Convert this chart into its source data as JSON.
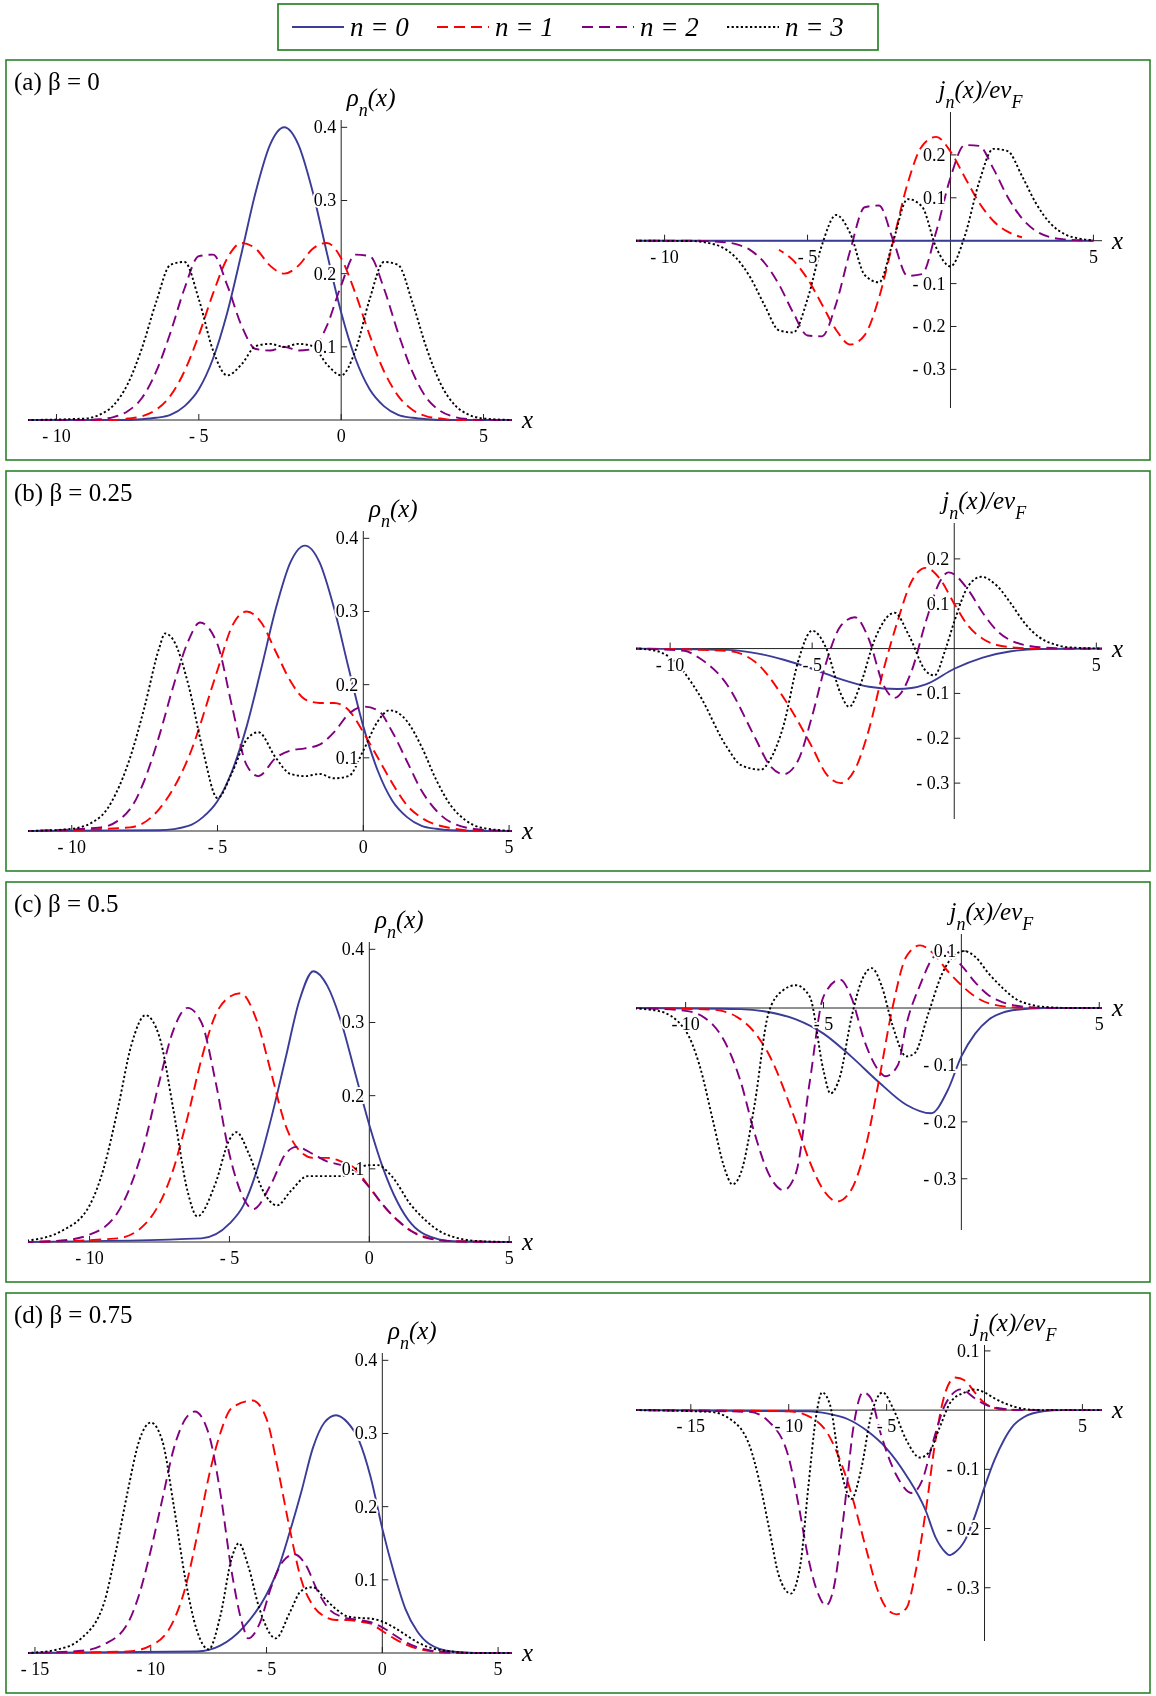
{
  "chart_data": [
    {
      "type": "line",
      "title": "(a) β = 0",
      "xlabel": "x",
      "ylabel": "ρ$_{n}$(x)",
      "legend": "top",
      "xlim": [
        -11,
        6
      ],
      "ylim": [
        0,
        0.41
      ],
      "xticks": [
        {
          "value": -10,
          "label": "- 10"
        },
        {
          "value": -5,
          "label": "- 5"
        },
        {
          "value": 0,
          "label": "0"
        },
        {
          "value": 5,
          "label": "5"
        }
      ],
      "yticks": [
        0.1,
        0.2,
        0.3,
        0.4
      ],
      "series": [
        {
          "name": "n = 0",
          "color": "#3b3b98",
          "line_style": "solid",
          "x": [
            -11,
            -9,
            -8.5,
            -8,
            -7.5,
            -7,
            -6.5,
            -6,
            -5.5,
            -5,
            -4.5,
            -4,
            -3.5,
            -3,
            -2.5,
            -2,
            -1.5,
            -1,
            -0.5,
            0,
            0.5,
            1,
            1.5,
            2,
            2.5,
            3,
            3.5,
            4,
            4.5,
            5,
            6
          ],
          "values": [
            0,
            0,
            0,
            0,
            0,
            0.001,
            0.003,
            0.007,
            0.019,
            0.042,
            0.084,
            0.147,
            0.228,
            0.312,
            0.376,
            0.4,
            0.376,
            0.312,
            0.228,
            0.147,
            0.084,
            0.042,
            0.019,
            0.007,
            0.003,
            0.001,
            0,
            0,
            0,
            0,
            0
          ]
        },
        {
          "name": "n = 1",
          "color": "#ff0000",
          "line_style": "dashed",
          "x": [
            -11,
            -9,
            -8.5,
            -8,
            -7.5,
            -7,
            -6.5,
            -6,
            -5.5,
            -5,
            -4.5,
            -4,
            -3.5,
            -3,
            -2.5,
            -2,
            -1.5,
            -1,
            -0.5,
            0,
            0.5,
            1,
            1.5,
            2,
            2.5,
            3,
            3.5,
            4,
            4.5,
            5,
            6
          ],
          "values": [
            0,
            0,
            0,
            0,
            0.002,
            0.005,
            0.014,
            0.033,
            0.067,
            0.116,
            0.173,
            0.221,
            0.242,
            0.234,
            0.211,
            0.2,
            0.211,
            0.234,
            0.242,
            0.221,
            0.173,
            0.116,
            0.067,
            0.033,
            0.014,
            0.005,
            0.002,
            0,
            0,
            0,
            0
          ]
        },
        {
          "name": "n = 2",
          "color": "#800080",
          "line_style": "dashed",
          "x": [
            -11,
            -9,
            -8.5,
            -8,
            -7.5,
            -7,
            -6.5,
            -6,
            -5.5,
            -5,
            -4.5,
            -4,
            -3.5,
            -3,
            -2.5,
            -2,
            -1.5,
            -1,
            -0.5,
            0,
            0.5,
            1,
            1.5,
            2,
            2.5,
            3,
            3.5,
            4,
            4.5,
            5,
            6
          ],
          "values": [
            0,
            0,
            0.001,
            0.004,
            0.012,
            0.03,
            0.066,
            0.119,
            0.18,
            0.224,
            0.226,
            0.184,
            0.129,
            0.097,
            0.095,
            0.1,
            0.095,
            0.097,
            0.129,
            0.184,
            0.226,
            0.224,
            0.18,
            0.119,
            0.066,
            0.03,
            0.012,
            0.004,
            0.001,
            0,
            0
          ]
        },
        {
          "name": "n = 3",
          "color": "#000000",
          "line_style": "dotted",
          "x": [
            -11,
            -9,
            -8.5,
            -8,
            -7.5,
            -7,
            -6.5,
            -6,
            -5.5,
            -5,
            -4.5,
            -4,
            -3.5,
            -3,
            -2.5,
            -2,
            -1.5,
            -1,
            -0.5,
            0,
            0.5,
            1,
            1.5,
            2,
            2.5,
            3,
            3.5,
            4,
            4.5,
            5,
            6
          ],
          "values": [
            0,
            0.002,
            0.007,
            0.02,
            0.049,
            0.098,
            0.161,
            0.212,
            0.216,
            0.165,
            0.095,
            0.061,
            0.076,
            0.101,
            0.104,
            0.1,
            0.104,
            0.101,
            0.076,
            0.061,
            0.095,
            0.165,
            0.216,
            0.212,
            0.161,
            0.098,
            0.049,
            0.02,
            0.007,
            0.002,
            0
          ]
        }
      ]
    },
    {
      "type": "line",
      "xlabel": "x",
      "ylabel": "j$_{n}$(x)/ev$_{F}$",
      "xlim": [
        -11,
        5.3
      ],
      "ylim": [
        -0.39,
        0.3
      ],
      "xticks": [
        {
          "value": -10,
          "label": "- 10"
        },
        {
          "value": -5,
          "label": "- 5"
        },
        {
          "value": 5,
          "label": "5"
        }
      ],
      "yticks": [
        {
          "value": -0.3,
          "label": "- 0.3"
        },
        {
          "value": -0.2,
          "label": "- 0.2"
        },
        {
          "value": -0.1,
          "label": "- 0.1"
        },
        0.1,
        0.2
      ],
      "series": [
        {
          "color": "#3b3b98",
          "line_style": "solid",
          "x": [
            -11,
            5
          ],
          "values": [
            0,
            0
          ]
        },
        {
          "color": "#ff0000",
          "line_style": "dashed",
          "x": [
            -6,
            -5.5,
            -5,
            -4.5,
            -4,
            -3.5,
            -3,
            -2.5,
            -2,
            -1.5,
            -1,
            -0.5,
            0,
            0.5,
            1,
            1.5,
            2,
            2.5
          ],
          "values": [
            -0.021,
            -0.046,
            -0.089,
            -0.148,
            -0.208,
            -0.242,
            -0.22,
            -0.133,
            0,
            0.133,
            0.22,
            0.242,
            0.208,
            0.148,
            0.089,
            0.046,
            0.021,
            0.008
          ]
        },
        {
          "color": "#800080",
          "line_style": "dashed",
          "x": [
            -11,
            -9,
            -8.5,
            -8,
            -7.5,
            -7,
            -6.5,
            -6,
            -5.5,
            -5,
            -4.5,
            -4,
            -3.5,
            -3,
            -2.5,
            -2,
            -1.5,
            -1,
            -0.5,
            0,
            0.5,
            1,
            1.5,
            2,
            2.5,
            3,
            3.5,
            4,
            4.5,
            5
          ],
          "values": [
            0,
            0,
            -0.001,
            -0.003,
            -0.008,
            -0.022,
            -0.052,
            -0.102,
            -0.168,
            -0.221,
            -0.223,
            -0.147,
            -0.021,
            0.078,
            0.082,
            0,
            -0.082,
            -0.078,
            0.021,
            0.147,
            0.223,
            0.221,
            0.168,
            0.102,
            0.052,
            0.022,
            0.008,
            0.003,
            0.001,
            0
          ]
        },
        {
          "color": "#000000",
          "line_style": "dotted",
          "x": [
            -11,
            -9,
            -8.5,
            -8,
            -7.5,
            -7,
            -6.5,
            -6,
            -5.5,
            -5,
            -4.5,
            -4,
            -3.5,
            -3,
            -2.5,
            -2,
            -1.5,
            -1,
            -0.5,
            0,
            0.5,
            1,
            1.5,
            2,
            2.5,
            3,
            3.5,
            4,
            4.5,
            5
          ],
          "values": [
            0,
            -0.001,
            -0.005,
            -0.015,
            -0.04,
            -0.086,
            -0.151,
            -0.209,
            -0.214,
            -0.136,
            -0.011,
            0.06,
            0.016,
            -0.08,
            -0.097,
            0,
            0.097,
            0.08,
            -0.016,
            -0.06,
            0.011,
            0.136,
            0.214,
            0.209,
            0.151,
            0.086,
            0.04,
            0.015,
            0.005,
            0.001
          ]
        }
      ]
    },
    {
      "type": "line",
      "title": "(b) β = 0.25",
      "xlabel": "x",
      "ylabel": "ρ$_{n}$(x)",
      "xlim": [
        -11.5,
        5.1
      ],
      "ylim": [
        0,
        0.41
      ],
      "xticks": [
        {
          "value": -10,
          "label": "- 10"
        },
        {
          "value": -5,
          "label": "- 5"
        },
        {
          "value": 0,
          "label": "0"
        },
        {
          "value": 5,
          "label": "5"
        }
      ],
      "yticks": [
        0.1,
        0.2,
        0.3,
        0.4
      ],
      "series": [
        {
          "color": "#3b3b98",
          "line_style": "solid",
          "x": [
            -11.5,
            -7,
            -6,
            -5.5,
            -5,
            -4.5,
            -4,
            -3.5,
            -3,
            -2.5,
            -2,
            -1.5,
            -1,
            -0.5,
            0,
            0.5,
            1,
            1.5,
            2,
            2.5,
            3,
            4,
            5.1
          ],
          "values": [
            0,
            0.001,
            0.007,
            0.019,
            0.041,
            0.082,
            0.143,
            0.222,
            0.304,
            0.367,
            0.39,
            0.367,
            0.304,
            0.222,
            0.143,
            0.082,
            0.041,
            0.019,
            0.007,
            0.003,
            0.001,
            0,
            0
          ]
        },
        {
          "color": "#ff0000",
          "line_style": "dashed",
          "x": [
            -11.5,
            -8,
            -7,
            -6,
            -5,
            -4.5,
            -4,
            -3.5,
            -3,
            -2.5,
            -2,
            -1.5,
            -1,
            -0.5,
            0,
            0.5,
            1,
            1.5,
            2,
            3,
            4,
            5.1
          ],
          "values": [
            0,
            0.005,
            0.03,
            0.1,
            0.22,
            0.28,
            0.3,
            0.285,
            0.245,
            0.205,
            0.18,
            0.175,
            0.175,
            0.165,
            0.135,
            0.1,
            0.065,
            0.035,
            0.018,
            0.004,
            0,
            0
          ]
        },
        {
          "color": "#800080",
          "line_style": "dashed",
          "x": [
            -11.5,
            -9,
            -8,
            -7.5,
            -7,
            -6.5,
            -6,
            -5.6,
            -5,
            -4.5,
            -4,
            -3.6,
            -3,
            -2.5,
            -2,
            -1.5,
            -1,
            -0.5,
            0,
            0.5,
            1,
            1.5,
            2,
            2.5,
            3,
            4,
            5.1
          ],
          "values": [
            0,
            0.005,
            0.03,
            0.07,
            0.13,
            0.2,
            0.26,
            0.285,
            0.255,
            0.17,
            0.09,
            0.075,
            0.1,
            0.11,
            0.113,
            0.118,
            0.135,
            0.16,
            0.17,
            0.165,
            0.135,
            0.095,
            0.055,
            0.028,
            0.012,
            0.002,
            0
          ]
        },
        {
          "color": "#000000",
          "line_style": "dotted",
          "x": [
            -11.5,
            -10,
            -9,
            -8.5,
            -8,
            -7.5,
            -7,
            -6.8,
            -6.5,
            -6,
            -5.5,
            -5,
            -4.5,
            -4,
            -3.6,
            -3,
            -2.5,
            -2,
            -1.5,
            -1,
            -0.5,
            0,
            0.5,
            0.9,
            1.5,
            2,
            2.5,
            3,
            3.5,
            4,
            5.1
          ],
          "values": [
            0,
            0.003,
            0.02,
            0.05,
            0.1,
            0.17,
            0.25,
            0.27,
            0.26,
            0.2,
            0.11,
            0.045,
            0.08,
            0.125,
            0.135,
            0.1,
            0.078,
            0.075,
            0.078,
            0.072,
            0.075,
            0.11,
            0.15,
            0.165,
            0.15,
            0.115,
            0.07,
            0.035,
            0.015,
            0.005,
            0
          ]
        }
      ]
    },
    {
      "type": "line",
      "xlabel": "x",
      "ylabel": "j$_{n}$(x)/ev$_{F}$",
      "xlim": [
        -11.2,
        5.2
      ],
      "ylim": [
        -0.38,
        0.28
      ],
      "xticks": [
        {
          "value": -10,
          "label": "- 10"
        },
        {
          "value": -5,
          "label": "- 5"
        },
        {
          "value": 5,
          "label": "5"
        }
      ],
      "yticks": [
        {
          "value": -0.3,
          "label": "- 0.3"
        },
        {
          "value": -0.2,
          "label": "- 0.2"
        },
        {
          "value": -0.1,
          "label": "- 0.1"
        },
        0.1,
        0.2
      ],
      "series": [
        {
          "color": "#3b3b98",
          "line_style": "solid",
          "x": [
            -11.2,
            -8,
            -7,
            -6,
            -5,
            -4,
            -3,
            -2,
            -1.5,
            -1,
            0,
            1,
            2,
            3,
            5.2
          ],
          "values": [
            0,
            -0.003,
            -0.01,
            -0.025,
            -0.045,
            -0.068,
            -0.085,
            -0.09,
            -0.088,
            -0.08,
            -0.045,
            -0.02,
            -0.006,
            -0.001,
            0
          ]
        },
        {
          "color": "#ff0000",
          "line_style": "dashed",
          "x": [
            -11.2,
            -8,
            -7,
            -6,
            -5,
            -4.5,
            -4,
            -3.5,
            -3,
            -2.5,
            -2,
            -1.5,
            -1,
            -0.5,
            0,
            0.5,
            1,
            1.5,
            2,
            3,
            5.2
          ],
          "values": [
            0,
            -0.005,
            -0.03,
            -0.11,
            -0.22,
            -0.28,
            -0.3,
            -0.27,
            -0.18,
            -0.05,
            0.06,
            0.15,
            0.18,
            0.155,
            0.1,
            0.05,
            0.022,
            0.008,
            0.003,
            0,
            0
          ]
        },
        {
          "color": "#800080",
          "line_style": "dashed",
          "x": [
            -11.2,
            -9.5,
            -9,
            -8,
            -7,
            -6.5,
            -6,
            -5.5,
            -5,
            -4.5,
            -4,
            -3.5,
            -3,
            -2.5,
            -2.1,
            -1.5,
            -1,
            -0.5,
            -0.2,
            0.5,
            1,
            1.5,
            2,
            3,
            4,
            5.2
          ],
          "values": [
            0,
            -0.005,
            -0.02,
            -0.08,
            -0.2,
            -0.26,
            -0.28,
            -0.25,
            -0.15,
            -0.03,
            0.05,
            0.07,
            0.02,
            -0.08,
            -0.11,
            -0.05,
            0.06,
            0.15,
            0.17,
            0.13,
            0.08,
            0.04,
            0.018,
            0.003,
            0,
            0
          ]
        },
        {
          "color": "#000000",
          "line_style": "dotted",
          "x": [
            -11.2,
            -10.5,
            -10,
            -9,
            -8,
            -7.5,
            -6.8,
            -6.5,
            -6,
            -5.5,
            -5,
            -4.5,
            -4,
            -3.7,
            -3.3,
            -2.8,
            -2.1,
            -1.6,
            -1,
            -0.7,
            -0.3,
            0,
            0.5,
            0.95,
            1.5,
            2,
            2.5,
            3,
            3.5,
            4,
            5.2
          ],
          "values": [
            0,
            -0.005,
            -0.02,
            -0.1,
            -0.22,
            -0.26,
            -0.27,
            -0.25,
            -0.17,
            -0.03,
            0.04,
            0,
            -0.1,
            -0.13,
            -0.08,
            0.02,
            0.08,
            0.03,
            -0.05,
            -0.06,
            0,
            0.06,
            0.14,
            0.16,
            0.14,
            0.1,
            0.055,
            0.025,
            0.01,
            0.003,
            0
          ]
        }
      ]
    },
    {
      "type": "line",
      "title": "(c) β = 0.5",
      "xlabel": "x",
      "ylabel": "ρ$_{n}$(x)",
      "xlim": [
        -12.2,
        5.1
      ],
      "ylim": [
        0,
        0.41
      ],
      "xticks": [
        {
          "value": -10,
          "label": "- 10"
        },
        {
          "value": -5,
          "label": "- 5"
        },
        {
          "value": 0,
          "label": "0"
        },
        {
          "value": 5,
          "label": "5"
        }
      ],
      "yticks": [
        0.1,
        0.2,
        0.3,
        0.4
      ],
      "series": [
        {
          "color": "#3b3b98",
          "line_style": "solid",
          "x": [
            -12.2,
            -6,
            -5,
            -4.5,
            -4,
            -3.5,
            -3,
            -2.5,
            -2,
            -1.5,
            -1,
            -0.5,
            0,
            0.5,
            1,
            1.5,
            2,
            3,
            5.1
          ],
          "values": [
            0,
            0.005,
            0.025,
            0.05,
            0.1,
            0.17,
            0.25,
            0.33,
            0.37,
            0.35,
            0.3,
            0.23,
            0.16,
            0.1,
            0.055,
            0.025,
            0.01,
            0.001,
            0
          ]
        },
        {
          "color": "#ff0000",
          "line_style": "dashed",
          "x": [
            -12.2,
            -9,
            -8,
            -7,
            -6.5,
            -6,
            -5.5,
            -5,
            -4.6,
            -4,
            -3.5,
            -3,
            -2.5,
            -2,
            -1.5,
            -1,
            -0.5,
            0,
            0.5,
            1,
            1.5,
            2,
            3,
            5.1
          ],
          "values": [
            0,
            0.005,
            0.025,
            0.1,
            0.17,
            0.25,
            0.31,
            0.335,
            0.34,
            0.3,
            0.23,
            0.16,
            0.125,
            0.115,
            0.115,
            0.11,
            0.1,
            0.075,
            0.05,
            0.03,
            0.015,
            0.007,
            0.001,
            0
          ]
        },
        {
          "color": "#800080",
          "line_style": "dashed",
          "x": [
            -12.2,
            -11,
            -10,
            -9,
            -8.5,
            -8,
            -7.5,
            -7,
            -6.5,
            -6,
            -5.5,
            -5,
            -4.5,
            -4.15,
            -3.5,
            -3,
            -2.6,
            -2,
            -1.5,
            -1,
            -0.5,
            0,
            0.5,
            1,
            1.5,
            2,
            3,
            5.1
          ],
          "values": [
            0,
            0.002,
            0.01,
            0.04,
            0.08,
            0.14,
            0.22,
            0.29,
            0.32,
            0.3,
            0.22,
            0.12,
            0.06,
            0.045,
            0.08,
            0.12,
            0.13,
            0.12,
            0.11,
            0.105,
            0.095,
            0.075,
            0.05,
            0.03,
            0.015,
            0.006,
            0.001,
            0
          ]
        },
        {
          "color": "#000000",
          "line_style": "dotted",
          "x": [
            -12.2,
            -11,
            -10,
            -9.5,
            -9,
            -8.5,
            -8,
            -7.5,
            -7,
            -6.5,
            -6.15,
            -5.5,
            -5,
            -4.75,
            -4.3,
            -3.8,
            -3.3,
            -2.8,
            -2.2,
            -1.5,
            -1,
            -0.5,
            0,
            0.3,
            0.8,
            1.5,
            2,
            2.5,
            3,
            4,
            5.1
          ],
          "values": [
            0.002,
            0.015,
            0.05,
            0.1,
            0.18,
            0.27,
            0.31,
            0.28,
            0.18,
            0.07,
            0.035,
            0.08,
            0.14,
            0.15,
            0.12,
            0.07,
            0.05,
            0.07,
            0.09,
            0.09,
            0.09,
            0.1,
            0.105,
            0.105,
            0.09,
            0.05,
            0.03,
            0.015,
            0.007,
            0.001,
            0
          ]
        }
      ]
    },
    {
      "type": "line",
      "xlabel": "x",
      "ylabel": "j$_{n}$(x)/ev$_{F}$",
      "xlim": [
        -11.8,
        5.1
      ],
      "ylim": [
        -0.39,
        0.13
      ],
      "xticks": [
        {
          "value": -10,
          "label": "- 10"
        },
        {
          "value": -5,
          "label": "- 5"
        },
        {
          "value": 5,
          "label": "5"
        }
      ],
      "yticks": [
        {
          "value": -0.3,
          "label": "- 0.3"
        },
        {
          "value": -0.2,
          "label": "- 0.2"
        },
        {
          "value": -0.1,
          "label": "- 0.1"
        },
        0.1
      ],
      "series": [
        {
          "color": "#3b3b98",
          "line_style": "solid",
          "x": [
            -11.8,
            -8,
            -7,
            -6,
            -5,
            -4,
            -3,
            -2,
            -1.1,
            -0.5,
            0,
            0.5,
            1,
            1.5,
            2,
            3,
            5.1
          ],
          "values": [
            0,
            -0.002,
            -0.007,
            -0.02,
            -0.045,
            -0.085,
            -0.13,
            -0.17,
            -0.185,
            -0.145,
            -0.085,
            -0.045,
            -0.02,
            -0.008,
            -0.003,
            0,
            0
          ]
        },
        {
          "color": "#ff0000",
          "line_style": "dashed",
          "x": [
            -11.8,
            -9,
            -8,
            -7,
            -6,
            -5.5,
            -5,
            -4.5,
            -4,
            -3.5,
            -3,
            -2.5,
            -2,
            -1.5,
            -1,
            -0.5,
            0,
            0.5,
            1,
            2,
            3,
            5.1
          ],
          "values": [
            0,
            -0.003,
            -0.02,
            -0.08,
            -0.2,
            -0.27,
            -0.32,
            -0.34,
            -0.32,
            -0.25,
            -0.13,
            0,
            0.09,
            0.11,
            0.095,
            0.065,
            0.04,
            0.02,
            0.008,
            0.001,
            0,
            0
          ]
        },
        {
          "color": "#800080",
          "line_style": "dashed",
          "x": [
            -11.8,
            -10,
            -9,
            -8,
            -7.5,
            -7,
            -6.45,
            -6,
            -5.5,
            -5,
            -4.4,
            -4,
            -3.5,
            -3,
            -2.75,
            -2.3,
            -2,
            -1.5,
            -1,
            -0.6,
            0,
            0.5,
            1,
            1.5,
            2,
            3,
            5.1
          ],
          "values": [
            0,
            -0.005,
            -0.03,
            -0.13,
            -0.22,
            -0.29,
            -0.32,
            -0.29,
            -0.13,
            0.02,
            0.05,
            0.02,
            -0.06,
            -0.11,
            -0.12,
            -0.1,
            -0.03,
            0.04,
            0.09,
            0.1,
            0.075,
            0.045,
            0.022,
            0.01,
            0.004,
            0,
            0
          ]
        },
        {
          "color": "#000000",
          "line_style": "dotted",
          "x": [
            -11.8,
            -11,
            -10,
            -9.5,
            -9,
            -8.6,
            -8.3,
            -8,
            -7.5,
            -7,
            -6.5,
            -6,
            -5.5,
            -5,
            -4.75,
            -4.4,
            -4,
            -3.6,
            -3.25,
            -2.9,
            -2.5,
            -2,
            -1.7,
            -1.2,
            -0.7,
            -0.2,
            0.1,
            0.5,
            1,
            1.5,
            2,
            2.5,
            3,
            4,
            5.1
          ],
          "values": [
            -0.001,
            -0.005,
            -0.04,
            -0.1,
            -0.2,
            -0.28,
            -0.31,
            -0.29,
            -0.17,
            -0.01,
            0.03,
            0.04,
            0.02,
            -0.11,
            -0.15,
            -0.12,
            -0.02,
            0.05,
            0.07,
            0.04,
            -0.03,
            -0.085,
            -0.08,
            -0.01,
            0.06,
            0.095,
            0.1,
            0.09,
            0.06,
            0.035,
            0.015,
            0.006,
            0.002,
            0,
            0
          ]
        }
      ]
    },
    {
      "type": "line",
      "title": "(d) β = 0.75",
      "xlabel": "x",
      "ylabel": "ρ$_{n}$(x)",
      "xlim": [
        -15.3,
        5.6
      ],
      "ylim": [
        0,
        0.41
      ],
      "xticks": [
        {
          "value": -15,
          "label": "- 15"
        },
        {
          "value": -10,
          "label": "- 10"
        },
        {
          "value": -5,
          "label": "- 5"
        },
        {
          "value": 0,
          "label": "0"
        },
        {
          "value": 5,
          "label": "5"
        }
      ],
      "yticks": [
        0.1,
        0.2,
        0.3,
        0.4
      ],
      "series": [
        {
          "color": "#3b3b98",
          "line_style": "solid",
          "x": [
            -15.3,
            -8,
            -7,
            -6,
            -5,
            -4.5,
            -4,
            -3.5,
            -3,
            -2.5,
            -2,
            -1.5,
            -1,
            -0.5,
            0,
            0.5,
            1,
            1.5,
            2,
            3,
            4,
            5.6
          ],
          "values": [
            0,
            0.002,
            0.01,
            0.035,
            0.08,
            0.115,
            0.165,
            0.22,
            0.28,
            0.315,
            0.325,
            0.315,
            0.29,
            0.24,
            0.17,
            0.11,
            0.06,
            0.03,
            0.013,
            0.002,
            0,
            0
          ]
        },
        {
          "color": "#ff0000",
          "line_style": "dashed",
          "x": [
            -15.3,
            -11,
            -10,
            -9,
            -8.5,
            -8,
            -7.5,
            -7,
            -6.5,
            -5.6,
            -5,
            -4.5,
            -4,
            -3.5,
            -3,
            -2.5,
            -2,
            -1.5,
            -1,
            -0.5,
            0,
            0.5,
            1,
            1.5,
            2,
            3,
            5.6
          ],
          "values": [
            0,
            0.002,
            0.01,
            0.045,
            0.09,
            0.16,
            0.24,
            0.3,
            0.335,
            0.345,
            0.32,
            0.25,
            0.17,
            0.1,
            0.065,
            0.05,
            0.045,
            0.045,
            0.043,
            0.04,
            0.03,
            0.02,
            0.012,
            0.006,
            0.003,
            0,
            0
          ]
        },
        {
          "color": "#800080",
          "line_style": "dashed",
          "x": [
            -15.3,
            -13,
            -12,
            -11,
            -10.5,
            -10,
            -9.5,
            -9,
            -8.5,
            -8.1,
            -7.5,
            -7,
            -6.5,
            -6,
            -5.8,
            -5.3,
            -4.8,
            -4.3,
            -3.8,
            -3.3,
            -2.8,
            -2.3,
            -1.8,
            -1,
            -0.5,
            0,
            0.5,
            1,
            1.5,
            2,
            3,
            4,
            5.6
          ],
          "values": [
            0,
            0.003,
            0.012,
            0.04,
            0.08,
            0.14,
            0.21,
            0.28,
            0.32,
            0.33,
            0.3,
            0.22,
            0.11,
            0.035,
            0.02,
            0.04,
            0.09,
            0.125,
            0.135,
            0.12,
            0.085,
            0.06,
            0.05,
            0.045,
            0.042,
            0.035,
            0.025,
            0.015,
            0.008,
            0.004,
            0.001,
            0,
            0
          ]
        },
        {
          "color": "#000000",
          "line_style": "dotted",
          "x": [
            -15.3,
            -14,
            -13,
            -12,
            -11.5,
            -11,
            -10.5,
            -10,
            -9.5,
            -9,
            -8.5,
            -8,
            -7.5,
            -7,
            -6.5,
            -6.2,
            -5.8,
            -5.3,
            -4.6,
            -4,
            -3.5,
            -3,
            -2.5,
            -2,
            -1.5,
            -1,
            -0.5,
            0,
            0.5,
            1,
            1.5,
            2,
            3,
            4,
            5.6
          ],
          "values": [
            0,
            0.005,
            0.02,
            0.07,
            0.14,
            0.22,
            0.29,
            0.315,
            0.29,
            0.2,
            0.1,
            0.03,
            0.005,
            0.05,
            0.13,
            0.15,
            0.12,
            0.06,
            0.02,
            0.055,
            0.085,
            0.09,
            0.075,
            0.06,
            0.05,
            0.048,
            0.047,
            0.043,
            0.035,
            0.025,
            0.015,
            0.008,
            0.002,
            0,
            0
          ]
        }
      ]
    },
    {
      "type": "line",
      "xlabel": "x",
      "ylabel": "j$_{n}$(x)/ev$_{F}$",
      "xlim": [
        -17.8,
        6
      ],
      "ylim": [
        -0.39,
        0.11
      ],
      "xticks": [
        {
          "value": -15,
          "label": "- 15"
        },
        {
          "value": -10,
          "label": "- 10"
        },
        {
          "value": -5,
          "label": "- 5"
        },
        {
          "value": 5,
          "label": "5"
        }
      ],
      "yticks": [
        {
          "value": -0.3,
          "label": "- 0.3"
        },
        {
          "value": -0.2,
          "label": "- 0.2"
        },
        {
          "value": -0.1,
          "label": "- 0.1"
        },
        0.1
      ],
      "series": [
        {
          "color": "#3b3b98",
          "line_style": "solid",
          "x": [
            -17.8,
            -9,
            -8,
            -7,
            -6,
            -5,
            -4,
            -3,
            -2.5,
            -2,
            -1.8,
            -1.5,
            -1,
            -0.5,
            0,
            0.5,
            1,
            1.5,
            2,
            3,
            4,
            6
          ],
          "values": [
            0,
            -0.002,
            -0.006,
            -0.015,
            -0.035,
            -0.065,
            -0.11,
            -0.17,
            -0.215,
            -0.24,
            -0.245,
            -0.24,
            -0.22,
            -0.18,
            -0.13,
            -0.085,
            -0.05,
            -0.025,
            -0.012,
            -0.002,
            0,
            0
          ]
        },
        {
          "color": "#ff0000",
          "line_style": "dashed",
          "x": [
            -17.8,
            -10,
            -9,
            -8,
            -7,
            -6,
            -5.5,
            -5,
            -4.5,
            -4,
            -3.5,
            -3,
            -2.5,
            -2,
            -1.5,
            -1,
            -0.5,
            0,
            0.5,
            1,
            2,
            6
          ],
          "values": [
            0,
            -0.002,
            -0.01,
            -0.04,
            -0.12,
            -0.24,
            -0.3,
            -0.335,
            -0.345,
            -0.335,
            -0.27,
            -0.17,
            -0.05,
            0.03,
            0.055,
            0.05,
            0.03,
            0.012,
            0.004,
            0.001,
            0,
            0
          ]
        },
        {
          "color": "#800080",
          "line_style": "dashed",
          "x": [
            -17.8,
            -12,
            -11,
            -10,
            -9.5,
            -9,
            -8.5,
            -8.1,
            -7.7,
            -7.2,
            -6.7,
            -6.2,
            -5.8,
            -5.3,
            -4.5,
            -3.7,
            -3.2,
            -2.6,
            -2,
            -1.2,
            -0.5,
            0,
            1,
            2,
            6
          ],
          "values": [
            0,
            -0.003,
            -0.02,
            -0.08,
            -0.16,
            -0.25,
            -0.31,
            -0.33,
            -0.3,
            -0.18,
            -0.03,
            0.03,
            0.02,
            -0.04,
            -0.11,
            -0.14,
            -0.12,
            -0.05,
            0.01,
            0.035,
            0.02,
            0.01,
            0.002,
            0,
            0
          ]
        },
        {
          "color": "#000000",
          "line_style": "dotted",
          "x": [
            -17.8,
            -14,
            -13,
            -12,
            -11.5,
            -11,
            -10.5,
            -9.9,
            -9.4,
            -9,
            -8.6,
            -8.3,
            -7.9,
            -7.4,
            -6.8,
            -6.3,
            -5.8,
            -5.2,
            -4.7,
            -4,
            -3.3,
            -2.8,
            -2.3,
            -1.7,
            -1,
            -0.5,
            0,
            0.5,
            1,
            1.5,
            2,
            3,
            6
          ],
          "values": [
            0,
            -0.003,
            -0.015,
            -0.06,
            -0.12,
            -0.2,
            -0.28,
            -0.31,
            -0.26,
            -0.13,
            -0.01,
            0.03,
            0.01,
            -0.09,
            -0.15,
            -0.1,
            -0.01,
            0.03,
            0.005,
            -0.05,
            -0.08,
            -0.07,
            -0.03,
            0.015,
            0.03,
            0.035,
            0.03,
            0.02,
            0.012,
            0.006,
            0.002,
            0,
            0
          ]
        }
      ]
    }
  ]
}
